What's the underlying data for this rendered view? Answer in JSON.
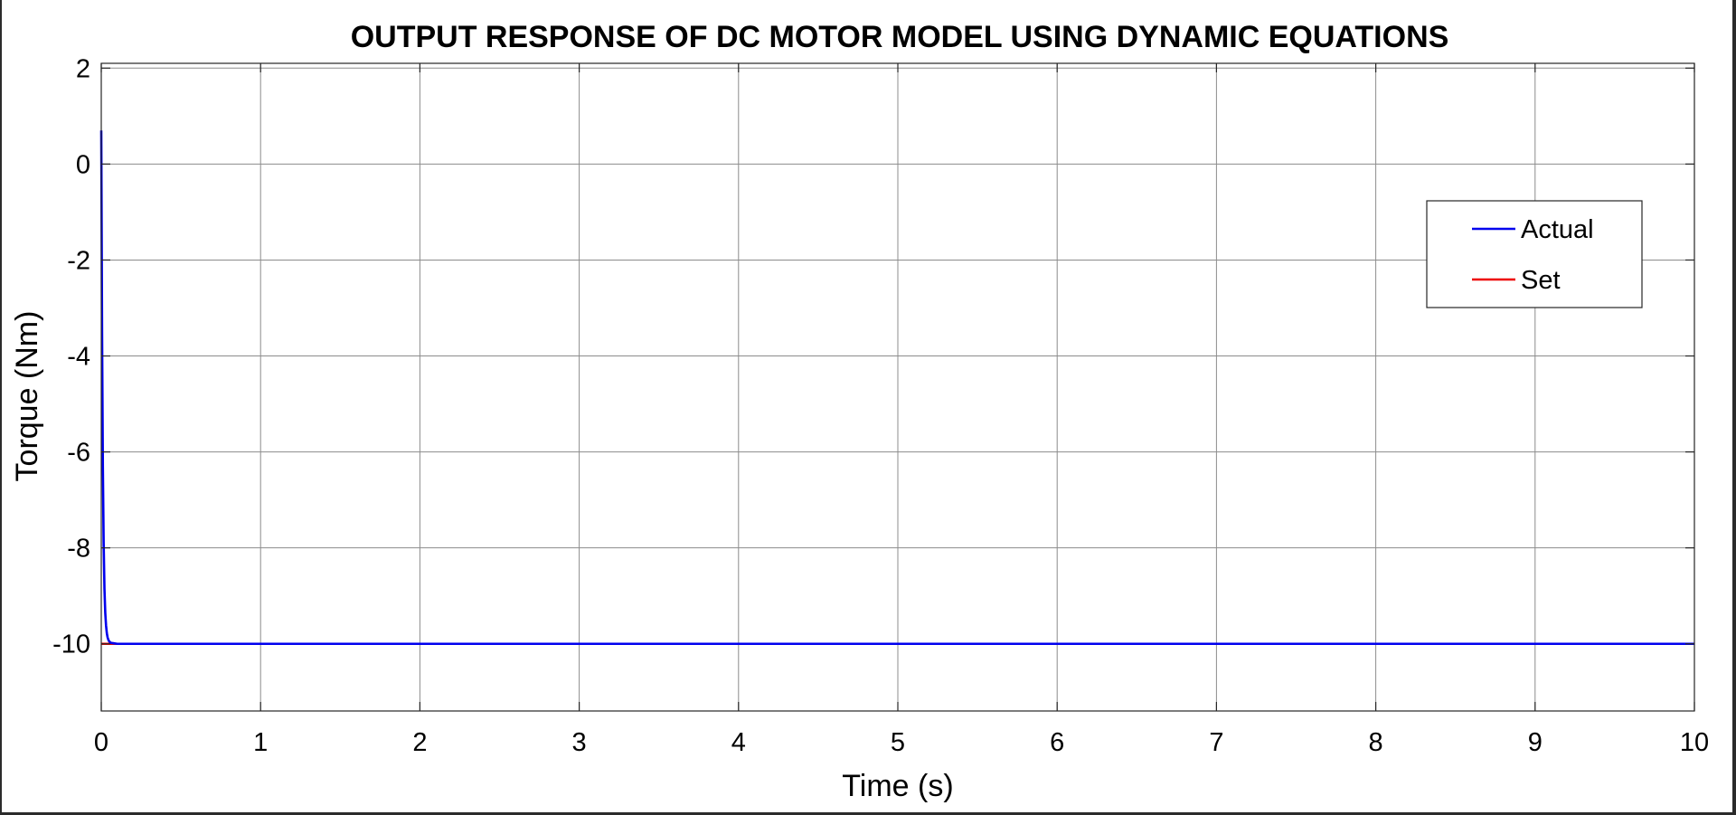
{
  "chart_data": {
    "type": "line",
    "title": "OUTPUT RESPONSE OF DC MOTOR MODEL USING DYNAMIC EQUATIONS",
    "xlabel": "Time (s)",
    "ylabel": "Torque (Nm)",
    "xlim": [
      0,
      10
    ],
    "ylim": [
      -11.4,
      2.1
    ],
    "xticks": [
      0,
      1,
      2,
      3,
      4,
      5,
      6,
      7,
      8,
      9,
      10
    ],
    "yticks": [
      2,
      0,
      -2,
      -4,
      -6,
      -8,
      -10
    ],
    "grid": true,
    "legend_position": "top-right",
    "series": [
      {
        "name": "Actual",
        "color": "#0000ee",
        "x": [
          0,
          0.005,
          0.01,
          0.015,
          0.02,
          0.025,
          0.03,
          0.035,
          0.04,
          0.045,
          0.05,
          0.06,
          0.08,
          0.1,
          10
        ],
        "y": [
          0.7,
          -3.5,
          -6.3,
          -7.9,
          -8.85,
          -9.35,
          -9.62,
          -9.78,
          -9.87,
          -9.92,
          -9.95,
          -9.98,
          -9.99,
          -10,
          -10
        ]
      },
      {
        "name": "Set",
        "color": "#ee0000",
        "x": [
          0,
          10
        ],
        "y": [
          -10,
          -10
        ]
      }
    ]
  }
}
